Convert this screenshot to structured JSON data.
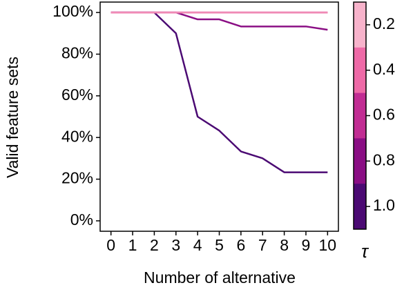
{
  "chart_data": {
    "type": "line",
    "xlabel": "Number of alternative",
    "ylabel": "Valid feature sets",
    "x": [
      0,
      1,
      2,
      3,
      4,
      5,
      6,
      7,
      8,
      9,
      10
    ],
    "series": [
      {
        "color": "#4b0a73",
        "values": [
          100,
          100,
          100,
          90,
          50,
          43.3,
          33.3,
          30,
          23.3,
          23.3,
          23.3
        ]
      },
      {
        "color": "#8a0e84",
        "values": [
          100,
          100,
          100,
          100,
          96.7,
          96.7,
          93.3,
          93.3,
          93.3,
          93.3,
          91.7
        ]
      },
      {
        "color": "#c12d93",
        "values": [
          100,
          100,
          100,
          100,
          100,
          100,
          100,
          100,
          100,
          100,
          100
        ]
      },
      {
        "color": "#ee6aa7",
        "values": [
          100,
          100,
          100,
          100,
          100,
          100,
          100,
          100,
          100,
          100,
          100
        ]
      },
      {
        "color": "#f08ab5",
        "values": [
          100,
          100,
          100,
          100,
          100,
          100,
          100,
          100,
          100,
          100,
          100
        ]
      }
    ],
    "xlim": [
      -0.5,
      10.5
    ],
    "xticks": [
      0,
      1,
      2,
      3,
      4,
      5,
      6,
      7,
      8,
      9,
      10
    ],
    "ylim": [
      -5,
      105
    ],
    "yticks": [
      {
        "value": 0,
        "label": "0%"
      },
      {
        "value": 20,
        "label": "20%"
      },
      {
        "value": 40,
        "label": "40%"
      },
      {
        "value": 60,
        "label": "60%"
      },
      {
        "value": 80,
        "label": "80%"
      },
      {
        "value": 100,
        "label": "100%"
      }
    ],
    "colorbar": {
      "label": "τ",
      "lim": [
        0.1,
        1.1
      ],
      "ticks": [
        0.2,
        0.4,
        0.6,
        0.8,
        {
          "value": 1.0,
          "label": "1.0"
        }
      ],
      "colors": [
        "#f7b3cb",
        "#ee6aa7",
        "#c12d93",
        "#8a0e84",
        "#4b0a73"
      ]
    }
  }
}
